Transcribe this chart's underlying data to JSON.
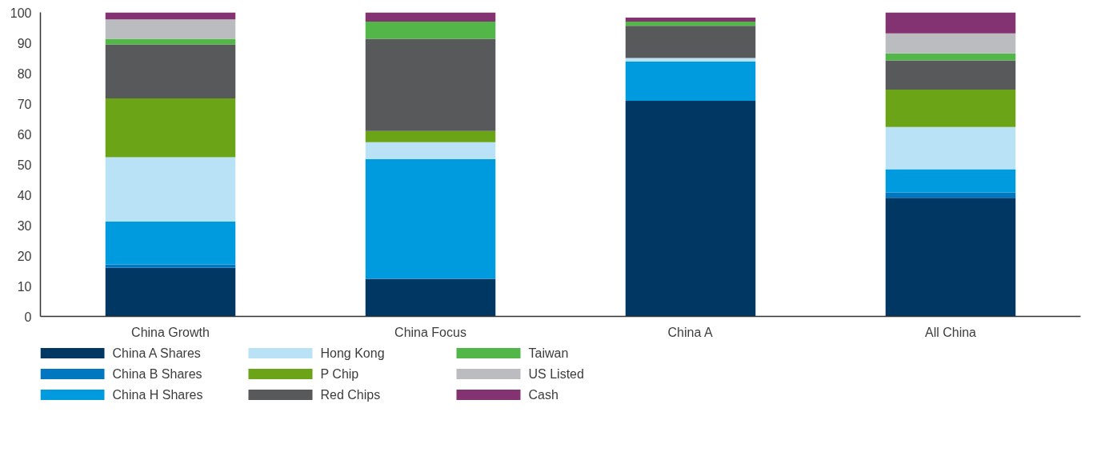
{
  "chart_data": {
    "type": "bar",
    "stacked": true,
    "categories": [
      "China Growth",
      "China Focus",
      "China A",
      "All China"
    ],
    "ylim": [
      0,
      100
    ],
    "yticks": [
      0,
      10,
      20,
      30,
      40,
      50,
      60,
      70,
      80,
      90,
      100
    ],
    "grid": false,
    "legend": "bottom",
    "series": [
      {
        "name": "China A Shares",
        "color": "#003763",
        "values": [
          16.0,
          12.4,
          70.9,
          39.0
        ]
      },
      {
        "name": "China B Shares",
        "color": "#0077c0",
        "values": [
          1.1,
          0,
          0,
          1.8
        ]
      },
      {
        "name": "China H Shares",
        "color": "#009ade",
        "values": [
          14.1,
          39.4,
          12.9,
          7.6
        ]
      },
      {
        "name": "Hong Kong",
        "color": "#bae2f7",
        "values": [
          21.2,
          5.5,
          1.2,
          13.9
        ]
      },
      {
        "name": "P Chip",
        "color": "#6ba417",
        "values": [
          19.3,
          3.7,
          0,
          12.3
        ]
      },
      {
        "name": "Red Chips",
        "color": "#58595b",
        "values": [
          17.8,
          30.3,
          10.6,
          9.6
        ]
      },
      {
        "name": "Taiwan",
        "color": "#52b748",
        "values": [
          1.8,
          5.7,
          1.4,
          2.3
        ]
      },
      {
        "name": "US Listed",
        "color": "#bbbcbf",
        "values": [
          6.4,
          0,
          0,
          6.6
        ]
      },
      {
        "name": "Cash",
        "color": "#843372",
        "values": [
          2.3,
          3.0,
          1.3,
          6.9
        ]
      }
    ]
  }
}
